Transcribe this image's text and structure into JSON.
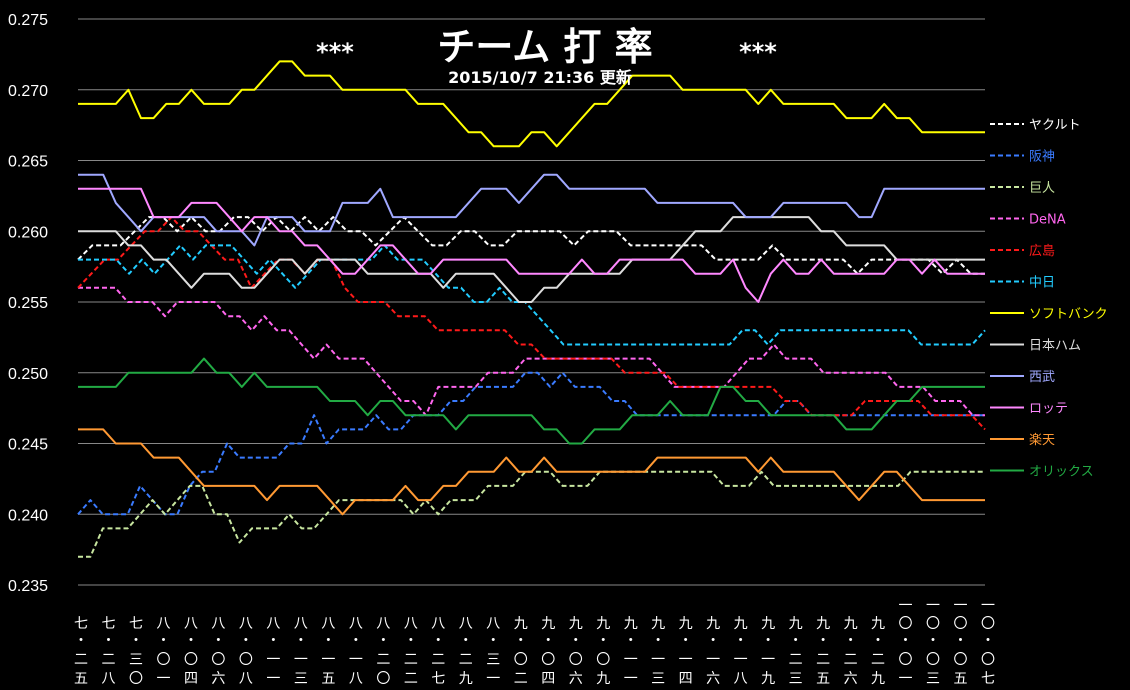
{
  "chart_data": {
    "type": "line",
    "title": "*** チーム 打 率 ***",
    "title_main": "チーム 打 率",
    "title_stars": "***",
    "subtitle": "2015/10/7  21:36 更新",
    "ylim": [
      0.235,
      0.275
    ],
    "y_ticks": [
      "0.235",
      "0.240",
      "0.245",
      "0.250",
      "0.255",
      "0.260",
      "0.265",
      "0.270",
      "0.275"
    ],
    "x_ticks": [
      [
        "七",
        "二",
        "五"
      ],
      [
        "七",
        "二",
        "八"
      ],
      [
        "七",
        "三",
        "〇"
      ],
      [
        "八",
        "〇",
        "一"
      ],
      [
        "八",
        "〇",
        "四"
      ],
      [
        "八",
        "〇",
        "六"
      ],
      [
        "八",
        "〇",
        "八"
      ],
      [
        "八",
        "一",
        "一"
      ],
      [
        "八",
        "一",
        "三"
      ],
      [
        "八",
        "一",
        "五"
      ],
      [
        "八",
        "一",
        "八"
      ],
      [
        "八",
        "二",
        "〇"
      ],
      [
        "八",
        "二",
        "二"
      ],
      [
        "八",
        "二",
        "七"
      ],
      [
        "八",
        "二",
        "九"
      ],
      [
        "八",
        "三",
        "一"
      ],
      [
        "九",
        "〇",
        "二"
      ],
      [
        "九",
        "〇",
        "四"
      ],
      [
        "九",
        "〇",
        "六"
      ],
      [
        "九",
        "〇",
        "九"
      ],
      [
        "九",
        "一",
        "一"
      ],
      [
        "九",
        "一",
        "三"
      ],
      [
        "九",
        "一",
        "四"
      ],
      [
        "九",
        "一",
        "六"
      ],
      [
        "九",
        "一",
        "八"
      ],
      [
        "九",
        "一",
        "九"
      ],
      [
        "九",
        "二",
        "三"
      ],
      [
        "九",
        "二",
        "五"
      ],
      [
        "九",
        "二",
        "六"
      ],
      [
        "九",
        "二",
        "九"
      ],
      [
        "一〇",
        "〇",
        "一"
      ],
      [
        "一〇",
        "〇",
        "三"
      ],
      [
        "一〇",
        "〇",
        "五"
      ],
      [
        "一〇",
        "〇",
        "七"
      ]
    ],
    "grid": true,
    "legend_position": "right",
    "series": [
      {
        "name": "ヤクルト",
        "color": "#ffffff",
        "dash": true,
        "values": [
          0.258,
          0.259,
          0.259,
          0.259,
          0.26,
          0.261,
          0.261,
          0.26,
          0.261,
          0.26,
          0.26,
          0.261,
          0.261,
          0.26,
          0.261,
          0.26,
          0.261,
          0.26,
          0.261,
          0.26,
          0.26,
          0.259,
          0.26,
          0.261,
          0.26,
          0.259,
          0.259,
          0.26,
          0.26,
          0.259,
          0.259,
          0.26,
          0.26,
          0.26,
          0.26,
          0.259,
          0.26,
          0.26,
          0.26,
          0.259,
          0.259,
          0.259,
          0.259,
          0.259,
          0.259,
          0.258,
          0.258,
          0.258,
          0.258,
          0.259,
          0.258,
          0.258,
          0.258,
          0.258,
          0.258,
          0.257,
          0.258,
          0.258,
          0.258,
          0.258,
          0.258,
          0.257,
          0.258,
          0.257,
          0.257
        ]
      },
      {
        "name": "阪神",
        "color": "#3a7bff",
        "dash": true,
        "values": [
          0.24,
          0.241,
          0.24,
          0.24,
          0.24,
          0.242,
          0.241,
          0.24,
          0.24,
          0.242,
          0.243,
          0.243,
          0.245,
          0.244,
          0.244,
          0.244,
          0.244,
          0.245,
          0.245,
          0.247,
          0.245,
          0.246,
          0.246,
          0.246,
          0.247,
          0.246,
          0.246,
          0.247,
          0.247,
          0.247,
          0.248,
          0.248,
          0.249,
          0.249,
          0.249,
          0.249,
          0.25,
          0.25,
          0.249,
          0.25,
          0.249,
          0.249,
          0.249,
          0.248,
          0.248,
          0.247,
          0.247,
          0.247,
          0.247,
          0.247,
          0.247,
          0.247,
          0.247,
          0.247,
          0.247,
          0.247,
          0.247,
          0.248,
          0.248,
          0.247,
          0.247,
          0.247,
          0.247,
          0.247,
          0.247,
          0.247,
          0.247,
          0.247,
          0.247,
          0.247,
          0.247,
          0.247,
          0.247,
          0.247
        ]
      },
      {
        "name": "巨人",
        "color": "#c8e6a0",
        "dash": true,
        "values": [
          0.237,
          0.237,
          0.239,
          0.239,
          0.239,
          0.24,
          0.241,
          0.24,
          0.241,
          0.242,
          0.242,
          0.24,
          0.24,
          0.238,
          0.239,
          0.239,
          0.239,
          0.24,
          0.239,
          0.239,
          0.24,
          0.241,
          0.241,
          0.241,
          0.241,
          0.241,
          0.241,
          0.24,
          0.241,
          0.24,
          0.241,
          0.241,
          0.241,
          0.242,
          0.242,
          0.242,
          0.243,
          0.243,
          0.243,
          0.242,
          0.242,
          0.242,
          0.243,
          0.243,
          0.243,
          0.243,
          0.243,
          0.243,
          0.243,
          0.243,
          0.243,
          0.243,
          0.242,
          0.242,
          0.242,
          0.243,
          0.242,
          0.242,
          0.242,
          0.242,
          0.242,
          0.242,
          0.242,
          0.242,
          0.242,
          0.242,
          0.242,
          0.243,
          0.243,
          0.243,
          0.243,
          0.243,
          0.243,
          0.243
        ]
      },
      {
        "name": "DeNA",
        "color": "#ff66ee",
        "dash": true,
        "values": [
          0.256,
          0.256,
          0.256,
          0.256,
          0.255,
          0.255,
          0.255,
          0.254,
          0.255,
          0.255,
          0.255,
          0.255,
          0.254,
          0.254,
          0.253,
          0.254,
          0.253,
          0.253,
          0.252,
          0.251,
          0.252,
          0.251,
          0.251,
          0.251,
          0.25,
          0.249,
          0.248,
          0.248,
          0.247,
          0.249,
          0.249,
          0.249,
          0.249,
          0.25,
          0.25,
          0.25,
          0.251,
          0.251,
          0.251,
          0.251,
          0.251,
          0.251,
          0.251,
          0.251,
          0.251,
          0.251,
          0.251,
          0.25,
          0.249,
          0.249,
          0.249,
          0.249,
          0.249,
          0.25,
          0.251,
          0.251,
          0.252,
          0.251,
          0.251,
          0.251,
          0.25,
          0.25,
          0.25,
          0.25,
          0.25,
          0.25,
          0.249,
          0.249,
          0.249,
          0.248,
          0.248,
          0.248,
          0.247,
          0.247
        ]
      },
      {
        "name": "広島",
        "color": "#ff1a1a",
        "dash": true,
        "values": [
          0.256,
          0.257,
          0.258,
          0.258,
          0.259,
          0.26,
          0.26,
          0.261,
          0.26,
          0.26,
          0.259,
          0.258,
          0.258,
          0.256,
          0.257,
          0.258,
          0.258,
          0.257,
          0.258,
          0.258,
          0.256,
          0.255,
          0.255,
          0.255,
          0.254,
          0.254,
          0.254,
          0.253,
          0.253,
          0.253,
          0.253,
          0.253,
          0.253,
          0.252,
          0.252,
          0.251,
          0.251,
          0.251,
          0.251,
          0.251,
          0.251,
          0.25,
          0.25,
          0.25,
          0.25,
          0.249,
          0.249,
          0.249,
          0.249,
          0.249,
          0.249,
          0.249,
          0.249,
          0.248,
          0.248,
          0.247,
          0.247,
          0.247,
          0.247,
          0.248,
          0.248,
          0.248,
          0.248,
          0.248,
          0.247,
          0.247,
          0.247,
          0.247,
          0.246
        ]
      },
      {
        "name": "中日",
        "color": "#22ccff",
        "dash": true,
        "values": [
          0.258,
          0.258,
          0.258,
          0.258,
          0.257,
          0.258,
          0.257,
          0.258,
          0.259,
          0.258,
          0.259,
          0.259,
          0.259,
          0.258,
          0.257,
          0.258,
          0.257,
          0.256,
          0.257,
          0.258,
          0.258,
          0.258,
          0.258,
          0.258,
          0.259,
          0.258,
          0.258,
          0.258,
          0.257,
          0.256,
          0.256,
          0.255,
          0.255,
          0.256,
          0.255,
          0.255,
          0.254,
          0.253,
          0.252,
          0.252,
          0.252,
          0.252,
          0.252,
          0.252,
          0.252,
          0.252,
          0.252,
          0.252,
          0.252,
          0.252,
          0.252,
          0.252,
          0.253,
          0.253,
          0.252,
          0.253,
          0.253,
          0.253,
          0.253,
          0.253,
          0.253,
          0.253,
          0.253,
          0.253,
          0.253,
          0.253,
          0.252,
          0.252,
          0.252,
          0.252,
          0.252,
          0.253
        ]
      },
      {
        "name": "ソフトバンク",
        "color": "#ffff00",
        "dash": false,
        "values": [
          0.269,
          0.269,
          0.269,
          0.269,
          0.27,
          0.268,
          0.268,
          0.269,
          0.269,
          0.27,
          0.269,
          0.269,
          0.269,
          0.27,
          0.27,
          0.271,
          0.272,
          0.272,
          0.271,
          0.271,
          0.271,
          0.27,
          0.27,
          0.27,
          0.27,
          0.27,
          0.27,
          0.269,
          0.269,
          0.269,
          0.268,
          0.267,
          0.267,
          0.266,
          0.266,
          0.266,
          0.267,
          0.267,
          0.266,
          0.267,
          0.268,
          0.269,
          0.269,
          0.27,
          0.271,
          0.271,
          0.271,
          0.271,
          0.27,
          0.27,
          0.27,
          0.27,
          0.27,
          0.27,
          0.269,
          0.27,
          0.269,
          0.269,
          0.269,
          0.269,
          0.269,
          0.268,
          0.268,
          0.268,
          0.269,
          0.268,
          0.268,
          0.267,
          0.267,
          0.267,
          0.267,
          0.267,
          0.267
        ]
      },
      {
        "name": "日本ハム",
        "color": "#dddddd",
        "dash": false,
        "values": [
          0.26,
          0.26,
          0.26,
          0.26,
          0.259,
          0.259,
          0.258,
          0.258,
          0.257,
          0.256,
          0.257,
          0.257,
          0.257,
          0.256,
          0.256,
          0.257,
          0.258,
          0.258,
          0.257,
          0.258,
          0.258,
          0.258,
          0.258,
          0.257,
          0.257,
          0.257,
          0.257,
          0.257,
          0.257,
          0.256,
          0.257,
          0.257,
          0.257,
          0.257,
          0.256,
          0.255,
          0.255,
          0.256,
          0.256,
          0.257,
          0.257,
          0.257,
          0.257,
          0.257,
          0.258,
          0.258,
          0.258,
          0.258,
          0.259,
          0.26,
          0.26,
          0.26,
          0.261,
          0.261,
          0.261,
          0.261,
          0.261,
          0.261,
          0.261,
          0.26,
          0.26,
          0.259,
          0.259,
          0.259,
          0.259,
          0.258,
          0.258,
          0.258,
          0.258,
          0.258,
          0.258,
          0.258,
          0.258
        ]
      },
      {
        "name": "西武",
        "color": "#a0a8ff",
        "dash": false,
        "values": [
          0.264,
          0.264,
          0.264,
          0.262,
          0.261,
          0.26,
          0.261,
          0.261,
          0.261,
          0.261,
          0.261,
          0.26,
          0.26,
          0.26,
          0.259,
          0.261,
          0.261,
          0.261,
          0.26,
          0.26,
          0.26,
          0.262,
          0.262,
          0.262,
          0.263,
          0.261,
          0.261,
          0.261,
          0.261,
          0.261,
          0.261,
          0.262,
          0.263,
          0.263,
          0.263,
          0.262,
          0.263,
          0.264,
          0.264,
          0.263,
          0.263,
          0.263,
          0.263,
          0.263,
          0.263,
          0.263,
          0.262,
          0.262,
          0.262,
          0.262,
          0.262,
          0.262,
          0.262,
          0.261,
          0.261,
          0.261,
          0.262,
          0.262,
          0.262,
          0.262,
          0.262,
          0.262,
          0.261,
          0.261,
          0.263,
          0.263,
          0.263,
          0.263,
          0.263,
          0.263,
          0.263,
          0.263,
          0.263
        ]
      },
      {
        "name": "ロッテ",
        "color": "#ff88ff",
        "dash": false,
        "values": [
          0.263,
          0.263,
          0.263,
          0.263,
          0.263,
          0.263,
          0.261,
          0.261,
          0.261,
          0.262,
          0.262,
          0.262,
          0.261,
          0.26,
          0.261,
          0.261,
          0.26,
          0.26,
          0.259,
          0.259,
          0.258,
          0.257,
          0.257,
          0.258,
          0.259,
          0.259,
          0.258,
          0.257,
          0.257,
          0.258,
          0.258,
          0.258,
          0.258,
          0.258,
          0.258,
          0.257,
          0.257,
          0.257,
          0.257,
          0.257,
          0.258,
          0.257,
          0.257,
          0.258,
          0.258,
          0.258,
          0.258,
          0.258,
          0.258,
          0.257,
          0.257,
          0.257,
          0.258,
          0.256,
          0.255,
          0.257,
          0.258,
          0.257,
          0.257,
          0.258,
          0.257,
          0.257,
          0.257,
          0.257,
          0.257,
          0.258,
          0.258,
          0.257,
          0.258,
          0.257,
          0.257,
          0.257,
          0.257
        ]
      },
      {
        "name": "楽天",
        "color": "#ff9933",
        "dash": false,
        "values": [
          0.246,
          0.246,
          0.246,
          0.245,
          0.245,
          0.245,
          0.244,
          0.244,
          0.244,
          0.243,
          0.242,
          0.242,
          0.242,
          0.242,
          0.242,
          0.241,
          0.242,
          0.242,
          0.242,
          0.242,
          0.241,
          0.24,
          0.241,
          0.241,
          0.241,
          0.241,
          0.242,
          0.241,
          0.241,
          0.242,
          0.242,
          0.243,
          0.243,
          0.243,
          0.244,
          0.243,
          0.243,
          0.244,
          0.243,
          0.243,
          0.243,
          0.243,
          0.243,
          0.243,
          0.243,
          0.243,
          0.244,
          0.244,
          0.244,
          0.244,
          0.244,
          0.244,
          0.244,
          0.244,
          0.243,
          0.244,
          0.243,
          0.243,
          0.243,
          0.243,
          0.243,
          0.242,
          0.241,
          0.242,
          0.243,
          0.243,
          0.242,
          0.241,
          0.241,
          0.241,
          0.241,
          0.241,
          0.241
        ]
      },
      {
        "name": "オリックス",
        "color": "#22aa44",
        "dash": false,
        "values": [
          0.249,
          0.249,
          0.249,
          0.249,
          0.25,
          0.25,
          0.25,
          0.25,
          0.25,
          0.25,
          0.251,
          0.25,
          0.25,
          0.249,
          0.25,
          0.249,
          0.249,
          0.249,
          0.249,
          0.249,
          0.248,
          0.248,
          0.248,
          0.247,
          0.248,
          0.248,
          0.247,
          0.247,
          0.247,
          0.247,
          0.246,
          0.247,
          0.247,
          0.247,
          0.247,
          0.247,
          0.247,
          0.246,
          0.246,
          0.245,
          0.245,
          0.246,
          0.246,
          0.246,
          0.247,
          0.247,
          0.247,
          0.248,
          0.247,
          0.247,
          0.247,
          0.249,
          0.249,
          0.248,
          0.248,
          0.247,
          0.247,
          0.247,
          0.247,
          0.247,
          0.247,
          0.246,
          0.246,
          0.246,
          0.247,
          0.248,
          0.248,
          0.249,
          0.249,
          0.249,
          0.249,
          0.249,
          0.249
        ]
      }
    ]
  }
}
